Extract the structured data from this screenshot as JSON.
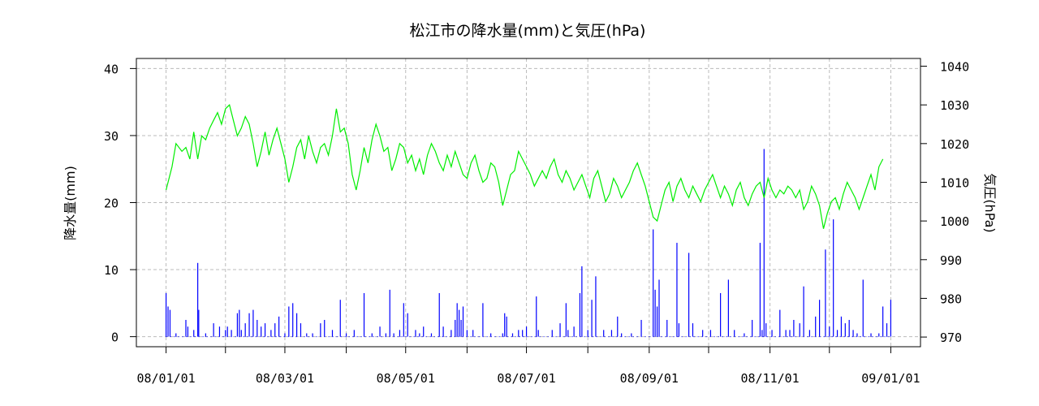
{
  "chart_data": {
    "type": "bar+line",
    "title": "松江市の降水量(mm)と気圧(hPa)",
    "ylabel_left": "降水量(mm)",
    "ylabel_right": "気圧(hPa)",
    "x_ticks": [
      "08/01/01",
      "08/03/01",
      "08/05/01",
      "08/07/01",
      "08/09/01",
      "08/11/01",
      "09/01/01"
    ],
    "x_tick_days": [
      0,
      60,
      121,
      182,
      244,
      305,
      366
    ],
    "left_ticks": [
      0,
      10,
      20,
      30,
      40
    ],
    "right_ticks": [
      970,
      980,
      990,
      1000,
      1010,
      1020,
      1030,
      1040
    ],
    "ylim_left": [
      -1.5,
      41.5
    ],
    "ylim_right": [
      967.5,
      1042
    ],
    "xlim_days": [
      -15,
      381
    ],
    "grid": true,
    "colors": {
      "precipitation": "#0000ff",
      "pressure": "#00ee00",
      "grid": "#bbbbbb"
    },
    "series": [
      {
        "kind": "bar",
        "axis": "left",
        "points": [
          [
            0,
            6.5
          ],
          [
            1,
            4.5
          ],
          [
            2,
            4
          ],
          [
            5,
            0.5
          ],
          [
            10,
            2.5
          ],
          [
            11,
            1.5
          ],
          [
            14,
            1
          ],
          [
            16,
            11
          ],
          [
            16.5,
            4
          ],
          [
            20,
            0.5
          ],
          [
            24,
            2
          ],
          [
            27,
            1.5
          ],
          [
            30,
            1
          ],
          [
            31,
            1.5
          ],
          [
            33,
            1
          ],
          [
            36,
            3.5
          ],
          [
            37,
            4
          ],
          [
            38,
            1
          ],
          [
            40,
            2
          ],
          [
            42,
            3.5
          ],
          [
            44,
            4
          ],
          [
            46,
            2.5
          ],
          [
            48,
            1.5
          ],
          [
            50,
            2
          ],
          [
            53,
            1
          ],
          [
            55,
            2
          ],
          [
            57,
            3
          ],
          [
            60,
            0.5
          ],
          [
            62,
            4.5
          ],
          [
            64,
            5
          ],
          [
            66,
            3.5
          ],
          [
            68,
            2
          ],
          [
            71,
            0.5
          ],
          [
            74,
            0.5
          ],
          [
            78,
            2
          ],
          [
            80,
            2.5
          ],
          [
            84,
            1
          ],
          [
            88,
            5.5
          ],
          [
            91,
            0.5
          ],
          [
            95,
            1
          ],
          [
            100,
            6.5
          ],
          [
            104,
            0.5
          ],
          [
            108,
            1.5
          ],
          [
            111,
            0.5
          ],
          [
            113,
            7
          ],
          [
            115,
            0.5
          ],
          [
            118,
            1
          ],
          [
            120,
            5
          ],
          [
            122,
            3.5
          ],
          [
            126,
            1
          ],
          [
            128,
            0.5
          ],
          [
            130,
            1.5
          ],
          [
            134,
            0.5
          ],
          [
            138,
            6.5
          ],
          [
            140,
            1.5
          ],
          [
            144,
            1
          ],
          [
            146,
            2.5
          ],
          [
            147,
            5
          ],
          [
            148,
            4
          ],
          [
            149,
            2.5
          ],
          [
            150,
            4.5
          ],
          [
            152,
            1
          ],
          [
            155,
            1
          ],
          [
            160,
            5
          ],
          [
            164,
            0.5
          ],
          [
            170,
            0.5
          ],
          [
            171,
            3.5
          ],
          [
            172,
            3
          ],
          [
            175,
            0.5
          ],
          [
            178,
            1
          ],
          [
            180,
            1
          ],
          [
            182,
            1.5
          ],
          [
            187,
            6
          ],
          [
            188,
            1
          ],
          [
            195,
            1
          ],
          [
            199,
            2
          ],
          [
            202,
            5
          ],
          [
            203,
            1
          ],
          [
            206,
            1.5
          ],
          [
            209,
            6.5
          ],
          [
            210,
            10.5
          ],
          [
            213,
            1
          ],
          [
            215,
            5.5
          ],
          [
            217,
            9
          ],
          [
            221,
            1
          ],
          [
            225,
            1
          ],
          [
            228,
            3
          ],
          [
            230,
            0.5
          ],
          [
            235,
            0.5
          ],
          [
            240,
            2.5
          ],
          [
            246,
            16
          ],
          [
            247,
            7
          ],
          [
            248,
            4.5
          ],
          [
            249,
            8.5
          ],
          [
            253,
            2.5
          ],
          [
            258,
            14
          ],
          [
            259,
            2
          ],
          [
            264,
            12.5
          ],
          [
            266,
            2
          ],
          [
            271,
            1
          ],
          [
            275,
            1
          ],
          [
            280,
            6.5
          ],
          [
            284,
            8.5
          ],
          [
            287,
            1
          ],
          [
            292,
            0.5
          ],
          [
            296,
            2.5
          ],
          [
            300,
            14
          ],
          [
            301,
            1
          ],
          [
            302,
            28
          ],
          [
            303,
            2
          ],
          [
            306,
            1
          ],
          [
            310,
            4
          ],
          [
            313,
            1
          ],
          [
            315,
            1
          ],
          [
            317,
            2.5
          ],
          [
            320,
            2
          ],
          [
            322,
            7.5
          ],
          [
            325,
            1
          ],
          [
            328,
            3
          ],
          [
            330,
            5.5
          ],
          [
            333,
            13
          ],
          [
            335,
            1.5
          ],
          [
            337,
            17.5
          ],
          [
            339,
            1
          ],
          [
            341,
            3
          ],
          [
            343,
            2
          ],
          [
            345,
            2.5
          ],
          [
            347,
            1
          ],
          [
            349,
            0.5
          ],
          [
            352,
            8.5
          ],
          [
            356,
            0.5
          ],
          [
            360,
            0.5
          ],
          [
            362,
            4.5
          ],
          [
            364,
            2
          ],
          [
            366,
            5.5
          ]
        ]
      },
      {
        "kind": "line",
        "axis": "right",
        "points": [
          [
            0,
            1008
          ],
          [
            3,
            1014
          ],
          [
            5,
            1020
          ],
          [
            8,
            1018
          ],
          [
            10,
            1019
          ],
          [
            12,
            1016
          ],
          [
            14,
            1023
          ],
          [
            16,
            1016
          ],
          [
            18,
            1022
          ],
          [
            20,
            1021
          ],
          [
            22,
            1024
          ],
          [
            24,
            1026
          ],
          [
            26,
            1028
          ],
          [
            28,
            1025
          ],
          [
            30,
            1029
          ],
          [
            32,
            1030
          ],
          [
            34,
            1026
          ],
          [
            36,
            1022
          ],
          [
            38,
            1024
          ],
          [
            40,
            1027
          ],
          [
            42,
            1025
          ],
          [
            44,
            1020
          ],
          [
            46,
            1014
          ],
          [
            48,
            1018
          ],
          [
            50,
            1023
          ],
          [
            52,
            1017
          ],
          [
            54,
            1021
          ],
          [
            56,
            1024
          ],
          [
            58,
            1020
          ],
          [
            60,
            1016
          ],
          [
            62,
            1010
          ],
          [
            64,
            1014
          ],
          [
            66,
            1019
          ],
          [
            68,
            1021
          ],
          [
            70,
            1016
          ],
          [
            72,
            1022
          ],
          [
            74,
            1018
          ],
          [
            76,
            1015
          ],
          [
            78,
            1019
          ],
          [
            80,
            1020
          ],
          [
            82,
            1017
          ],
          [
            84,
            1022
          ],
          [
            86,
            1029
          ],
          [
            88,
            1023
          ],
          [
            90,
            1024
          ],
          [
            92,
            1020
          ],
          [
            94,
            1012
          ],
          [
            96,
            1008
          ],
          [
            98,
            1013
          ],
          [
            100,
            1019
          ],
          [
            102,
            1015
          ],
          [
            104,
            1021
          ],
          [
            106,
            1025
          ],
          [
            108,
            1022
          ],
          [
            110,
            1018
          ],
          [
            112,
            1019
          ],
          [
            114,
            1013
          ],
          [
            116,
            1016
          ],
          [
            118,
            1020
          ],
          [
            120,
            1019
          ],
          [
            122,
            1015
          ],
          [
            124,
            1017
          ],
          [
            126,
            1013
          ],
          [
            128,
            1016
          ],
          [
            130,
            1012
          ],
          [
            132,
            1017
          ],
          [
            134,
            1020
          ],
          [
            136,
            1018
          ],
          [
            138,
            1015
          ],
          [
            140,
            1013
          ],
          [
            142,
            1017
          ],
          [
            144,
            1014
          ],
          [
            146,
            1018
          ],
          [
            148,
            1015
          ],
          [
            150,
            1012
          ],
          [
            152,
            1011
          ],
          [
            154,
            1015
          ],
          [
            156,
            1017
          ],
          [
            158,
            1013
          ],
          [
            160,
            1010
          ],
          [
            162,
            1011
          ],
          [
            164,
            1015
          ],
          [
            166,
            1014
          ],
          [
            168,
            1010
          ],
          [
            170,
            1004
          ],
          [
            172,
            1008
          ],
          [
            174,
            1012
          ],
          [
            176,
            1013
          ],
          [
            178,
            1018
          ],
          [
            180,
            1016
          ],
          [
            182,
            1014
          ],
          [
            184,
            1012
          ],
          [
            186,
            1009
          ],
          [
            188,
            1011
          ],
          [
            190,
            1013
          ],
          [
            192,
            1011
          ],
          [
            194,
            1014
          ],
          [
            196,
            1016
          ],
          [
            198,
            1012
          ],
          [
            200,
            1010
          ],
          [
            202,
            1013
          ],
          [
            204,
            1011
          ],
          [
            206,
            1008
          ],
          [
            208,
            1010
          ],
          [
            210,
            1012
          ],
          [
            212,
            1009
          ],
          [
            214,
            1006
          ],
          [
            216,
            1011
          ],
          [
            218,
            1013
          ],
          [
            220,
            1009
          ],
          [
            222,
            1005
          ],
          [
            224,
            1007
          ],
          [
            226,
            1011
          ],
          [
            228,
            1009
          ],
          [
            230,
            1006
          ],
          [
            232,
            1008
          ],
          [
            234,
            1010
          ],
          [
            236,
            1013
          ],
          [
            238,
            1015
          ],
          [
            240,
            1012
          ],
          [
            242,
            1009
          ],
          [
            244,
            1005
          ],
          [
            246,
            1001
          ],
          [
            248,
            1000
          ],
          [
            250,
            1004
          ],
          [
            252,
            1008
          ],
          [
            254,
            1010
          ],
          [
            256,
            1005
          ],
          [
            258,
            1009
          ],
          [
            260,
            1011
          ],
          [
            262,
            1008
          ],
          [
            264,
            1006
          ],
          [
            266,
            1009
          ],
          [
            268,
            1007
          ],
          [
            270,
            1005
          ],
          [
            272,
            1008
          ],
          [
            274,
            1010
          ],
          [
            276,
            1012
          ],
          [
            278,
            1009
          ],
          [
            280,
            1006
          ],
          [
            282,
            1009
          ],
          [
            284,
            1007
          ],
          [
            286,
            1004
          ],
          [
            288,
            1008
          ],
          [
            290,
            1010
          ],
          [
            292,
            1006
          ],
          [
            294,
            1004
          ],
          [
            296,
            1007
          ],
          [
            298,
            1009
          ],
          [
            300,
            1010
          ],
          [
            302,
            1006
          ],
          [
            304,
            1011
          ],
          [
            306,
            1008
          ],
          [
            308,
            1006
          ],
          [
            310,
            1008
          ],
          [
            312,
            1007
          ],
          [
            314,
            1009
          ],
          [
            316,
            1008
          ],
          [
            318,
            1006
          ],
          [
            320,
            1008
          ],
          [
            322,
            1003
          ],
          [
            324,
            1005
          ],
          [
            326,
            1009
          ],
          [
            328,
            1007
          ],
          [
            330,
            1004
          ],
          [
            332,
            998
          ],
          [
            334,
            1002
          ],
          [
            336,
            1005
          ],
          [
            338,
            1006
          ],
          [
            340,
            1003
          ],
          [
            342,
            1007
          ],
          [
            344,
            1010
          ],
          [
            346,
            1008
          ],
          [
            348,
            1006
          ],
          [
            350,
            1003
          ],
          [
            352,
            1006
          ],
          [
            354,
            1009
          ],
          [
            356,
            1012
          ],
          [
            358,
            1008
          ],
          [
            360,
            1014
          ],
          [
            362,
            1016
          ]
        ]
      }
    ]
  }
}
